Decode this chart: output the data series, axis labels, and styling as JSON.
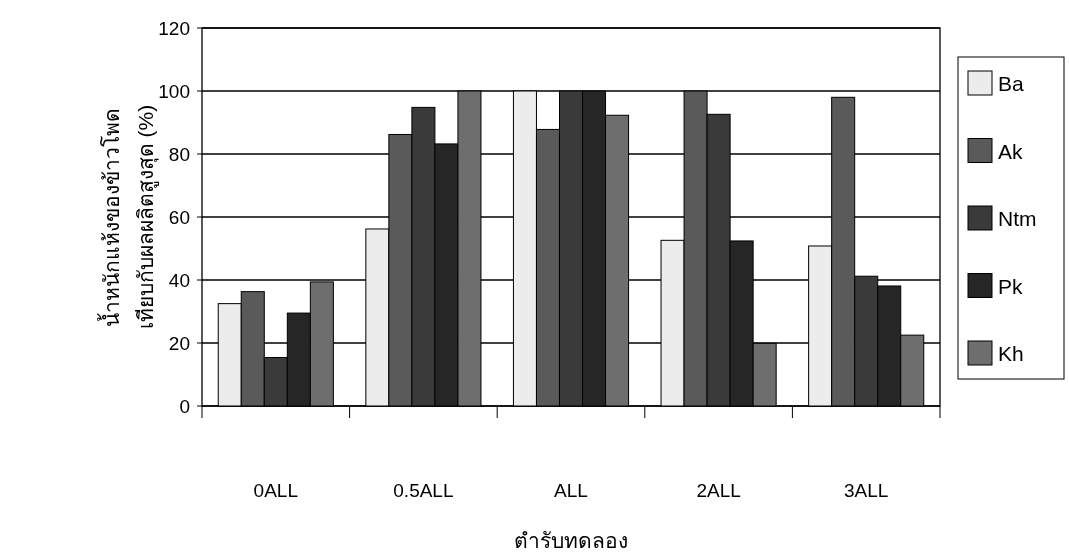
{
  "chart_data": {
    "type": "bar",
    "xlabel": "ตำรับทดลอง",
    "ylabel": "น้ำหนักแห้งของข้าวโพด\nเทียบกับผลผลิตสูงสุด (%)",
    "categories": [
      "0ALL",
      "0.5ALL",
      "ALL",
      "2ALL",
      "3ALL"
    ],
    "series": [
      {
        "name": "Ba",
        "color": "#ececec",
        "values": [
          32.5,
          56.2,
          100,
          52.6,
          50.8
        ]
      },
      {
        "name": "Ak",
        "color": "#5a5a5a",
        "values": [
          36.3,
          86.2,
          87.8,
          100,
          98.0
        ]
      },
      {
        "name": "Ntm",
        "color": "#3a3a3a",
        "values": [
          15.4,
          94.8,
          100,
          92.6,
          41.2
        ]
      },
      {
        "name": "Pk",
        "color": "#262626",
        "values": [
          29.5,
          83.2,
          100,
          52.4,
          38.1
        ]
      },
      {
        "name": "Kh",
        "color": "#6e6e6e",
        "values": [
          39.4,
          100,
          92.3,
          19.9,
          22.5
        ]
      }
    ],
    "ylim": [
      0,
      120
    ],
    "yticks": [
      0,
      20,
      40,
      60,
      80,
      100,
      120
    ],
    "grid": "y",
    "legend": "right"
  }
}
